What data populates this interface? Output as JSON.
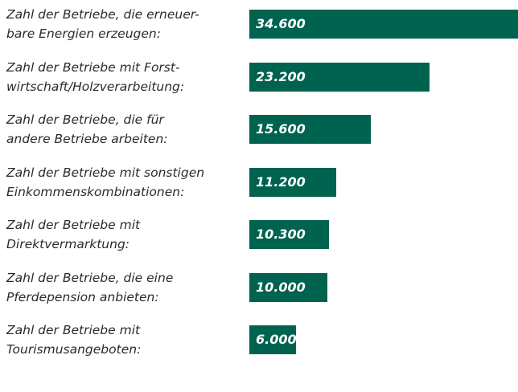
{
  "chart_data": {
    "type": "barh",
    "color": "#00634f",
    "categories": [
      "Zahl der Betriebe, die erneuer-\nbare Energien erzeugen:",
      "Zahl der Betriebe mit Forst-\nwirtschaft/Holzverarbeitung:",
      "Zahl der Betriebe, die für\nandere Betriebe arbeiten:",
      "Zahl der Betriebe mit sonstigen\nEinkommenskombinationen:",
      "Zahl der Betriebe mit\nDirektvermarktung:",
      "Zahl der Betriebe, die eine\nPferdepension anbieten:",
      "Zahl der Betriebe mit\nTourismusangeboten:"
    ],
    "values": [
      34600,
      23200,
      15600,
      11200,
      10300,
      10000,
      6000
    ],
    "value_labels": [
      "34.600",
      "23.200",
      "15.600",
      "11.200",
      "10.300",
      "10.000",
      "6.000"
    ]
  }
}
